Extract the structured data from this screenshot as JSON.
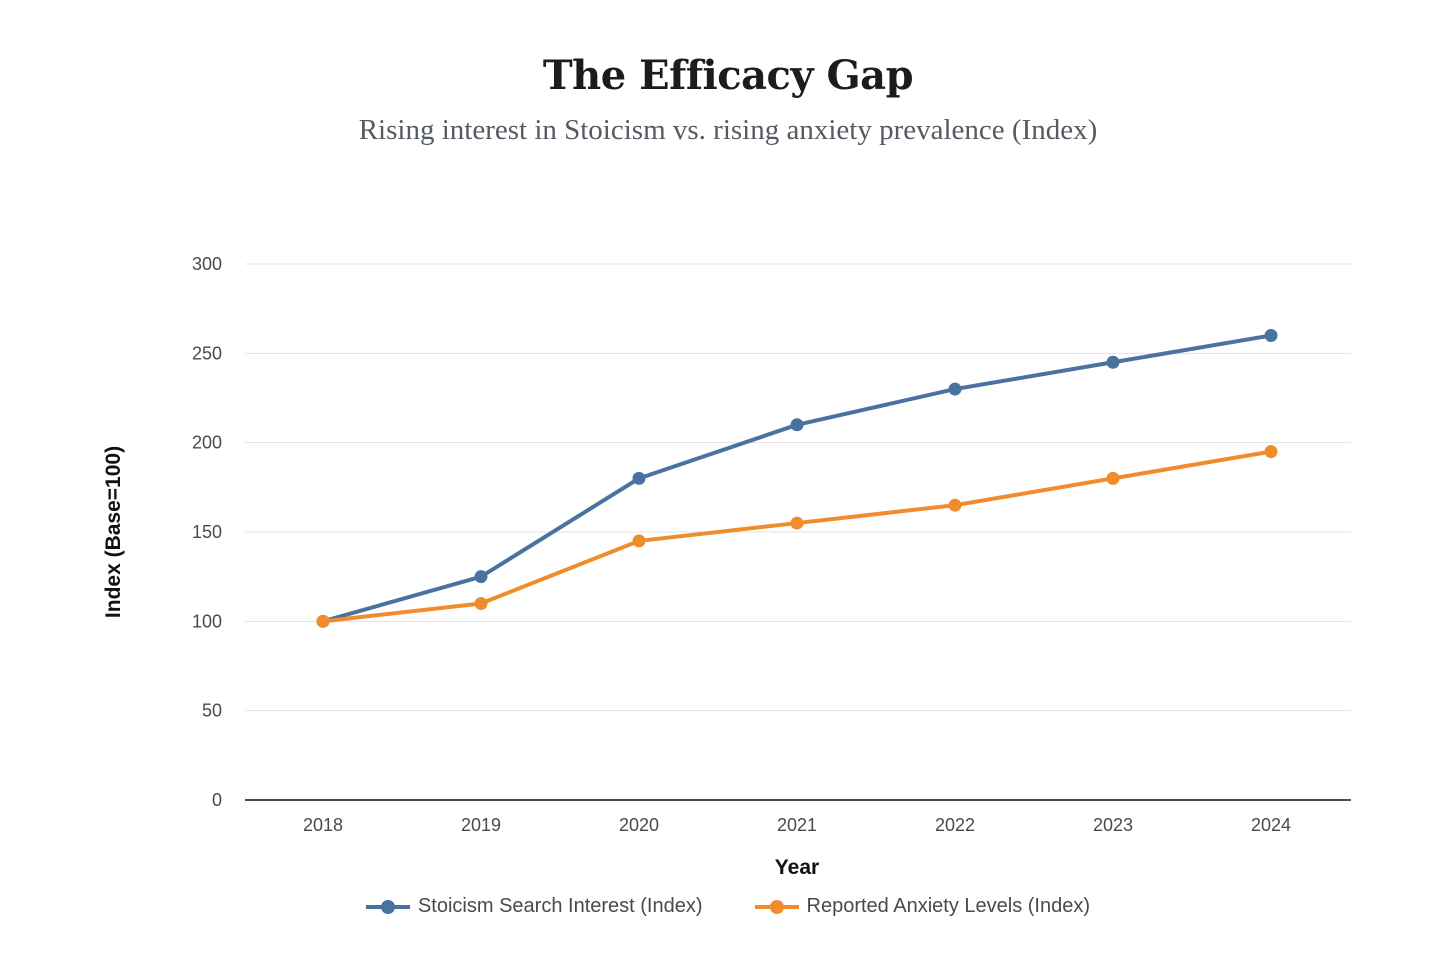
{
  "chart_data": {
    "type": "line",
    "title": "The Efficacy Gap",
    "subtitle": "Rising interest in Stoicism vs. rising anxiety prevalence (Index)",
    "xlabel": "Year",
    "ylabel": "Index (Base=100)",
    "categories": [
      "2018",
      "2019",
      "2020",
      "2021",
      "2022",
      "2023",
      "2024"
    ],
    "ylim": [
      0,
      300
    ],
    "yticks": [
      0,
      50,
      100,
      150,
      200,
      250,
      300
    ],
    "grid": true,
    "legend_position": "bottom",
    "series": [
      {
        "name": "Stoicism Search Interest (Index)",
        "color": "#4a72a0",
        "values": [
          100,
          125,
          180,
          210,
          230,
          245,
          260
        ]
      },
      {
        "name": "Reported Anxiety Levels (Index)",
        "color": "#f08c2c",
        "values": [
          100,
          110,
          145,
          155,
          165,
          180,
          195
        ]
      }
    ]
  }
}
